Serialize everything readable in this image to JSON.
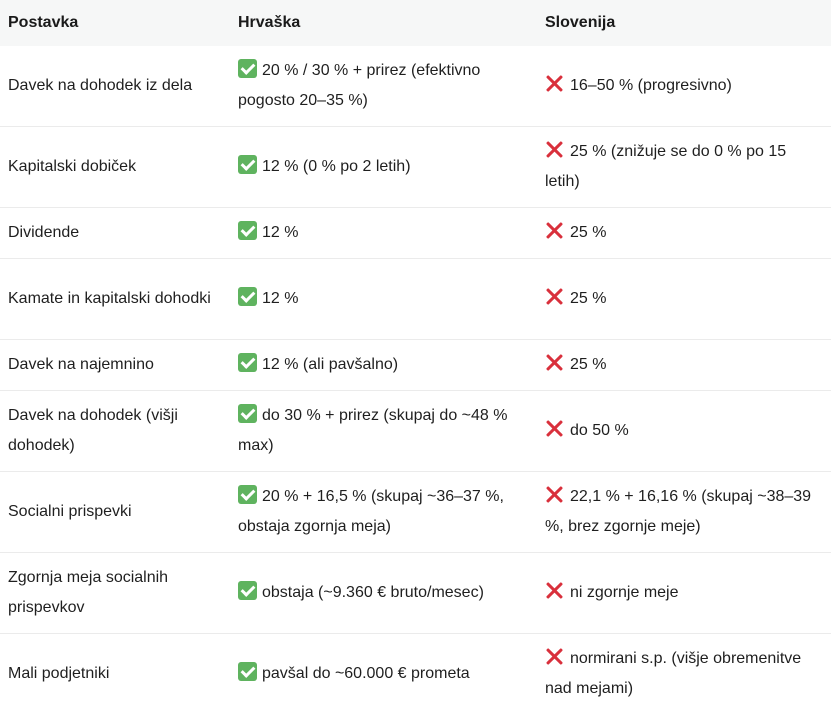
{
  "table": {
    "headers": [
      "Postavka",
      "Hrvaška",
      "Slovenija"
    ],
    "rows": [
      {
        "item": "Davek na dohodek iz dela",
        "croatia": "20 % / 30 % + prirez (efektivno pogosto 20–35 %)",
        "slovenia": "16–50 % (progresivno)"
      },
      {
        "item": "Kapitalski dobiček",
        "croatia": "12 % (0 % po 2 letih)",
        "slovenia": "25 % (znižuje se do 0 % po 15 letih)"
      },
      {
        "item": "Dividende",
        "croatia": "12 %",
        "slovenia": "25 %"
      },
      {
        "item": "Kamate in kapitalski dohodki",
        "croatia": "12 %",
        "slovenia": "25 %"
      },
      {
        "item": "Davek na najemnino",
        "croatia": "12 % (ali pavšalno)",
        "slovenia": "25 %"
      },
      {
        "item": "Davek na dohodek (višji dohodek)",
        "croatia": "do 30 % + prirez (skupaj do ~48 % max)",
        "slovenia": "do 50 %"
      },
      {
        "item": "Socialni prispevki",
        "croatia": "20 % + 16,5 % (skupaj ~36–37 %, obstaja zgornja meja)",
        "slovenia": "22,1 % + 16,16 % (skupaj ~38–39 %, brez zgornje meje)"
      },
      {
        "item": "Zgornja meja socialnih prispevkov",
        "croatia": "obstaja (~9.360 € bruto/mesec)",
        "slovenia": "ni zgornje meje"
      },
      {
        "item": "Mali podjetniki",
        "croatia": "pavšal do ~60.000 € prometa",
        "slovenia": "normirani s.p. (višje obremenitve nad mejami)"
      }
    ],
    "icons": {
      "croatia": "check-mark-icon",
      "slovenia": "cross-mark-icon"
    },
    "colors": {
      "check": "#5fb35f",
      "cross": "#d9303c",
      "header_bg": "#f6f7f7"
    }
  }
}
